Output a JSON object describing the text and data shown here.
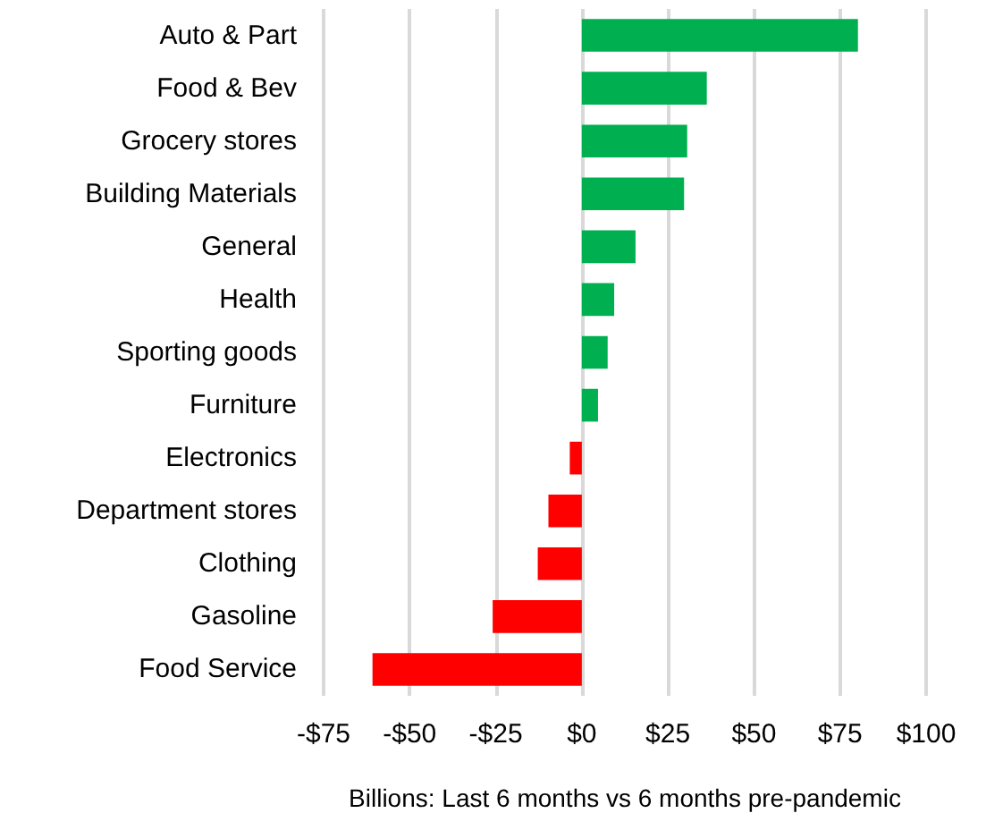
{
  "chart_data": {
    "type": "bar",
    "orientation": "horizontal",
    "xlabel": "Billions: Last 6 months vs 6 months pre-pandemic",
    "categories": [
      "Auto & Part",
      "Food & Bev",
      "Grocery stores",
      "Building Materials",
      "General",
      "Health",
      "Sporting goods",
      "Furniture",
      "Electronics",
      "Department stores",
      "Clothing",
      "Gasoline",
      "Food Service"
    ],
    "values": [
      80.2,
      36.3,
      30.6,
      29.7,
      15.6,
      9.4,
      7.5,
      4.7,
      -3.5,
      -9.7,
      -12.8,
      -25.9,
      -60.8
    ],
    "colors": [
      "#00b050",
      "#00b050",
      "#00b050",
      "#00b050",
      "#00b050",
      "#00b050",
      "#00b050",
      "#00b050",
      "#ff0000",
      "#ff0000",
      "#ff0000",
      "#ff0000",
      "#ff0000"
    ],
    "xlim": [
      -75,
      100
    ],
    "xticks": [
      {
        "value": -75,
        "label": "-$75"
      },
      {
        "value": -50,
        "label": "-$50"
      },
      {
        "value": -25,
        "label": "-$25"
      },
      {
        "value": 0,
        "label": "$0"
      },
      {
        "value": 25,
        "label": "$25"
      },
      {
        "value": 50,
        "label": "$50"
      },
      {
        "value": 75,
        "label": "$75"
      },
      {
        "value": 100,
        "label": "$100"
      }
    ],
    "grid": "x"
  }
}
